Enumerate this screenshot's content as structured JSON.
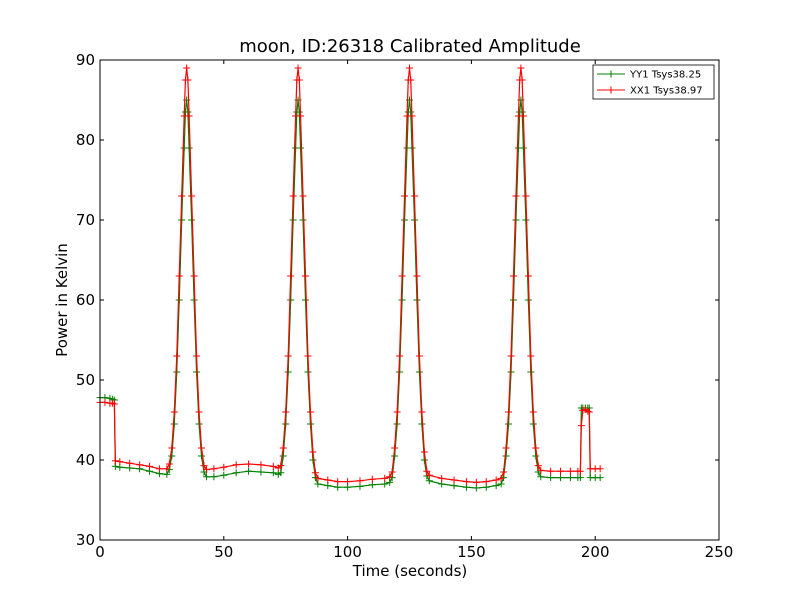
{
  "chart_data": {
    "type": "line",
    "title": "moon, ID:26318 Calibrated Amplitude",
    "xlabel": "Time (seconds)",
    "ylabel": "Power in Kelvin",
    "xlim": [
      0,
      250
    ],
    "ylim": [
      30,
      90
    ],
    "xticks": [
      "0",
      "50",
      "100",
      "150",
      "200",
      "250"
    ],
    "yticks": [
      "30",
      "40",
      "50",
      "60",
      "70",
      "80",
      "90"
    ],
    "grid": false,
    "legend_position": "top-right",
    "marker": "plus",
    "series": [
      {
        "name": "YY1 Tsys38.25",
        "color": "#008000",
        "points": [
          [
            0,
            47.8
          ],
          [
            2,
            47.8
          ],
          [
            4,
            47.7
          ],
          [
            5,
            47.6
          ],
          [
            5.8,
            47.5
          ],
          [
            6.2,
            39.2
          ],
          [
            8,
            39.1
          ],
          [
            12,
            39.0
          ],
          [
            16,
            38.9
          ],
          [
            20,
            38.6
          ],
          [
            24,
            38.3
          ],
          [
            27,
            38.2
          ],
          [
            28,
            38.8
          ],
          [
            29,
            40.5
          ],
          [
            30,
            44.5
          ],
          [
            31,
            51.0
          ],
          [
            32,
            60.0
          ],
          [
            33,
            70.0
          ],
          [
            34,
            79.0
          ],
          [
            34.5,
            83.5
          ],
          [
            35,
            85.0
          ],
          [
            35.5,
            83.5
          ],
          [
            36,
            79.0
          ],
          [
            37,
            70.0
          ],
          [
            38,
            60.0
          ],
          [
            39,
            51.0
          ],
          [
            40,
            44.5
          ],
          [
            41,
            40.5
          ],
          [
            42,
            38.5
          ],
          [
            43,
            37.9
          ],
          [
            46,
            37.9
          ],
          [
            50,
            38.1
          ],
          [
            55,
            38.4
          ],
          [
            60,
            38.6
          ],
          [
            65,
            38.5
          ],
          [
            70,
            38.4
          ],
          [
            72,
            38.2
          ],
          [
            73,
            38.4
          ],
          [
            74,
            40.5
          ],
          [
            75,
            44.5
          ],
          [
            76,
            51.0
          ],
          [
            77,
            60.0
          ],
          [
            78,
            70.0
          ],
          [
            79,
            79.0
          ],
          [
            79.5,
            83.5
          ],
          [
            80,
            85.0
          ],
          [
            80.5,
            83.5
          ],
          [
            81,
            79.0
          ],
          [
            82,
            70.0
          ],
          [
            83,
            60.0
          ],
          [
            84,
            51.0
          ],
          [
            85,
            44.5
          ],
          [
            86,
            40.0
          ],
          [
            87,
            37.8
          ],
          [
            88,
            37.0
          ],
          [
            92,
            36.8
          ],
          [
            96,
            36.6
          ],
          [
            100,
            36.6
          ],
          [
            105,
            36.7
          ],
          [
            110,
            36.9
          ],
          [
            115,
            37.0
          ],
          [
            117,
            37.2
          ],
          [
            118,
            37.8
          ],
          [
            119,
            40.5
          ],
          [
            120,
            44.5
          ],
          [
            121,
            51.0
          ],
          [
            122,
            60.0
          ],
          [
            123,
            70.0
          ],
          [
            124,
            79.0
          ],
          [
            124.5,
            83.5
          ],
          [
            125,
            85.0
          ],
          [
            125.5,
            83.5
          ],
          [
            126,
            79.0
          ],
          [
            127,
            70.0
          ],
          [
            128,
            60.0
          ],
          [
            129,
            51.0
          ],
          [
            130,
            44.5
          ],
          [
            131,
            40.0
          ],
          [
            132,
            38.0
          ],
          [
            133,
            37.4
          ],
          [
            138,
            37.0
          ],
          [
            143,
            36.8
          ],
          [
            148,
            36.6
          ],
          [
            152,
            36.5
          ],
          [
            156,
            36.6
          ],
          [
            160,
            36.8
          ],
          [
            162,
            37.0
          ],
          [
            163,
            37.8
          ],
          [
            164,
            40.5
          ],
          [
            165,
            44.5
          ],
          [
            166,
            51.0
          ],
          [
            167,
            60.0
          ],
          [
            168,
            70.0
          ],
          [
            169,
            79.0
          ],
          [
            169.5,
            83.5
          ],
          [
            170,
            85.0
          ],
          [
            170.5,
            83.5
          ],
          [
            171,
            79.0
          ],
          [
            172,
            70.0
          ],
          [
            173,
            60.0
          ],
          [
            174,
            51.0
          ],
          [
            175,
            44.5
          ],
          [
            176,
            40.5
          ],
          [
            177,
            38.5
          ],
          [
            178,
            37.9
          ],
          [
            182,
            37.8
          ],
          [
            186,
            37.8
          ],
          [
            190,
            37.8
          ],
          [
            193,
            37.8
          ],
          [
            194,
            37.8
          ],
          [
            194.4,
            46.5
          ],
          [
            195,
            46.5
          ],
          [
            196,
            46.5
          ],
          [
            197,
            46.5
          ],
          [
            197.6,
            46.5
          ],
          [
            198,
            37.8
          ],
          [
            200,
            37.8
          ],
          [
            202,
            37.8
          ]
        ]
      },
      {
        "name": "XX1 Tsys38.97",
        "color": "#ff0000",
        "points": [
          [
            0,
            47.2
          ],
          [
            2,
            47.2
          ],
          [
            4,
            47.1
          ],
          [
            5,
            47.1
          ],
          [
            5.8,
            47.0
          ],
          [
            6.2,
            39.9
          ],
          [
            8,
            39.8
          ],
          [
            12,
            39.6
          ],
          [
            16,
            39.4
          ],
          [
            20,
            39.2
          ],
          [
            24,
            38.9
          ],
          [
            27,
            38.9
          ],
          [
            28,
            39.5
          ],
          [
            29,
            41.5
          ],
          [
            30,
            46.0
          ],
          [
            31,
            53.0
          ],
          [
            32,
            63.0
          ],
          [
            33,
            73.0
          ],
          [
            34,
            83.0
          ],
          [
            34.5,
            87.5
          ],
          [
            35,
            89.0
          ],
          [
            35.5,
            87.5
          ],
          [
            36,
            83.0
          ],
          [
            37,
            73.0
          ],
          [
            38,
            63.0
          ],
          [
            39,
            53.0
          ],
          [
            40,
            46.0
          ],
          [
            41,
            41.5
          ],
          [
            42,
            39.3
          ],
          [
            43,
            38.8
          ],
          [
            46,
            38.9
          ],
          [
            50,
            39.1
          ],
          [
            55,
            39.4
          ],
          [
            60,
            39.5
          ],
          [
            65,
            39.4
          ],
          [
            70,
            39.2
          ],
          [
            72,
            39.0
          ],
          [
            73,
            39.3
          ],
          [
            74,
            41.5
          ],
          [
            75,
            46.0
          ],
          [
            76,
            53.0
          ],
          [
            77,
            63.0
          ],
          [
            78,
            73.0
          ],
          [
            79,
            83.0
          ],
          [
            79.5,
            87.5
          ],
          [
            80,
            89.0
          ],
          [
            80.5,
            87.5
          ],
          [
            81,
            83.0
          ],
          [
            82,
            73.0
          ],
          [
            83,
            63.0
          ],
          [
            84,
            53.0
          ],
          [
            85,
            46.0
          ],
          [
            86,
            41.0
          ],
          [
            87,
            38.4
          ],
          [
            88,
            37.7
          ],
          [
            92,
            37.5
          ],
          [
            96,
            37.3
          ],
          [
            100,
            37.3
          ],
          [
            105,
            37.4
          ],
          [
            110,
            37.6
          ],
          [
            115,
            37.7
          ],
          [
            117,
            37.9
          ],
          [
            118,
            38.5
          ],
          [
            119,
            41.5
          ],
          [
            120,
            46.0
          ],
          [
            121,
            53.0
          ],
          [
            122,
            63.0
          ],
          [
            123,
            73.0
          ],
          [
            124,
            83.0
          ],
          [
            124.5,
            87.5
          ],
          [
            125,
            89.0
          ],
          [
            125.5,
            87.5
          ],
          [
            126,
            83.0
          ],
          [
            127,
            73.0
          ],
          [
            128,
            63.0
          ],
          [
            129,
            53.0
          ],
          [
            130,
            46.0
          ],
          [
            131,
            41.0
          ],
          [
            132,
            38.6
          ],
          [
            133,
            38.1
          ],
          [
            138,
            37.7
          ],
          [
            143,
            37.5
          ],
          [
            148,
            37.3
          ],
          [
            152,
            37.2
          ],
          [
            156,
            37.3
          ],
          [
            160,
            37.5
          ],
          [
            162,
            37.7
          ],
          [
            163,
            38.5
          ],
          [
            164,
            41.5
          ],
          [
            165,
            46.0
          ],
          [
            166,
            53.0
          ],
          [
            167,
            63.0
          ],
          [
            168,
            73.0
          ],
          [
            169,
            83.0
          ],
          [
            169.5,
            87.5
          ],
          [
            170,
            89.0
          ],
          [
            170.5,
            87.5
          ],
          [
            171,
            83.0
          ],
          [
            172,
            73.0
          ],
          [
            173,
            63.0
          ],
          [
            174,
            53.0
          ],
          [
            175,
            46.0
          ],
          [
            176,
            41.5
          ],
          [
            177,
            39.3
          ],
          [
            178,
            38.7
          ],
          [
            182,
            38.6
          ],
          [
            186,
            38.6
          ],
          [
            190,
            38.6
          ],
          [
            193,
            38.6
          ],
          [
            194,
            38.6
          ],
          [
            194.4,
            44.3
          ],
          [
            195,
            46.2
          ],
          [
            196,
            46.3
          ],
          [
            197,
            46.1
          ],
          [
            197.6,
            46.0
          ],
          [
            198,
            38.9
          ],
          [
            200,
            38.9
          ],
          [
            202,
            38.9
          ]
        ]
      }
    ]
  }
}
